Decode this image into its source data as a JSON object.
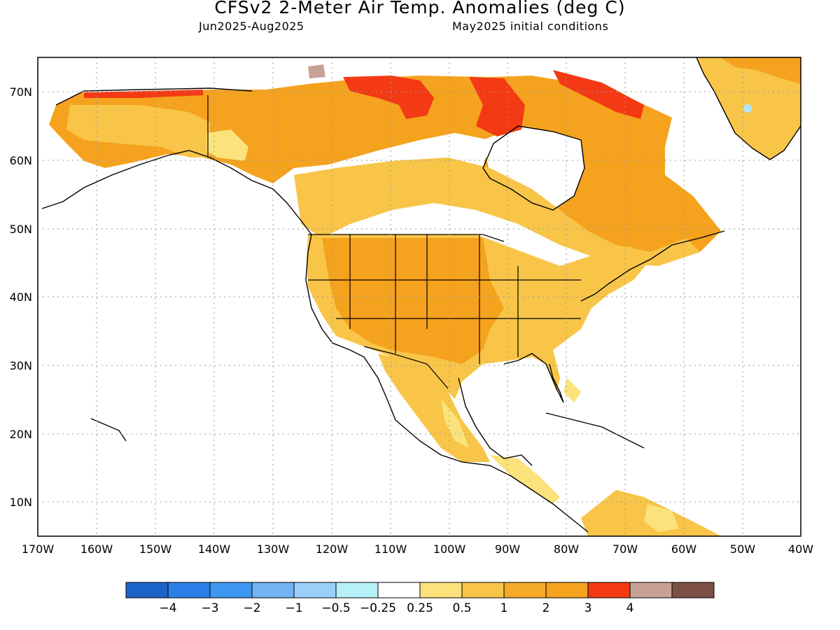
{
  "title": "CFSv2 2-Meter Air Temp. Anomalies (deg C)",
  "subtitle_left": "Jun2025-Aug2025",
  "subtitle_right": "May2025 initial conditions",
  "map": {
    "lon_labels": [
      "170W",
      "160W",
      "150W",
      "140W",
      "130W",
      "120W",
      "110W",
      "100W",
      "90W",
      "80W",
      "70W",
      "60W",
      "50W",
      "40W"
    ],
    "lat_labels": [
      "70N",
      "60N",
      "50N",
      "40N",
      "30N",
      "20N",
      "10N"
    ],
    "colors": {
      "ocean": "#ffffff",
      "coast": "#000000",
      "grid": "#9a9a9a",
      "white": "#ffffff",
      "light_yellow": "#fbe27a",
      "yellow_orange": "#f8c548",
      "orange": "#f5a21e",
      "red": "#f33a14",
      "pink_brown": "#c8a196",
      "light_blue": "#aee8f8"
    }
  },
  "colorbar": {
    "colors": [
      "#1c64c8",
      "#2a80e8",
      "#3c98f0",
      "#72b4f4",
      "#9ad0f8",
      "#b6f0f8",
      "#ffffff",
      "#fbe27a",
      "#f8c548",
      "#f6aa2a",
      "#f5a21e",
      "#f33a14",
      "#c8a196",
      "#7c5044"
    ],
    "labels": [
      "-4",
      "-3",
      "-2",
      "-1",
      "-0.5",
      "-0.25",
      "0.25",
      "0.5",
      "1",
      "2",
      "3",
      "4"
    ]
  }
}
